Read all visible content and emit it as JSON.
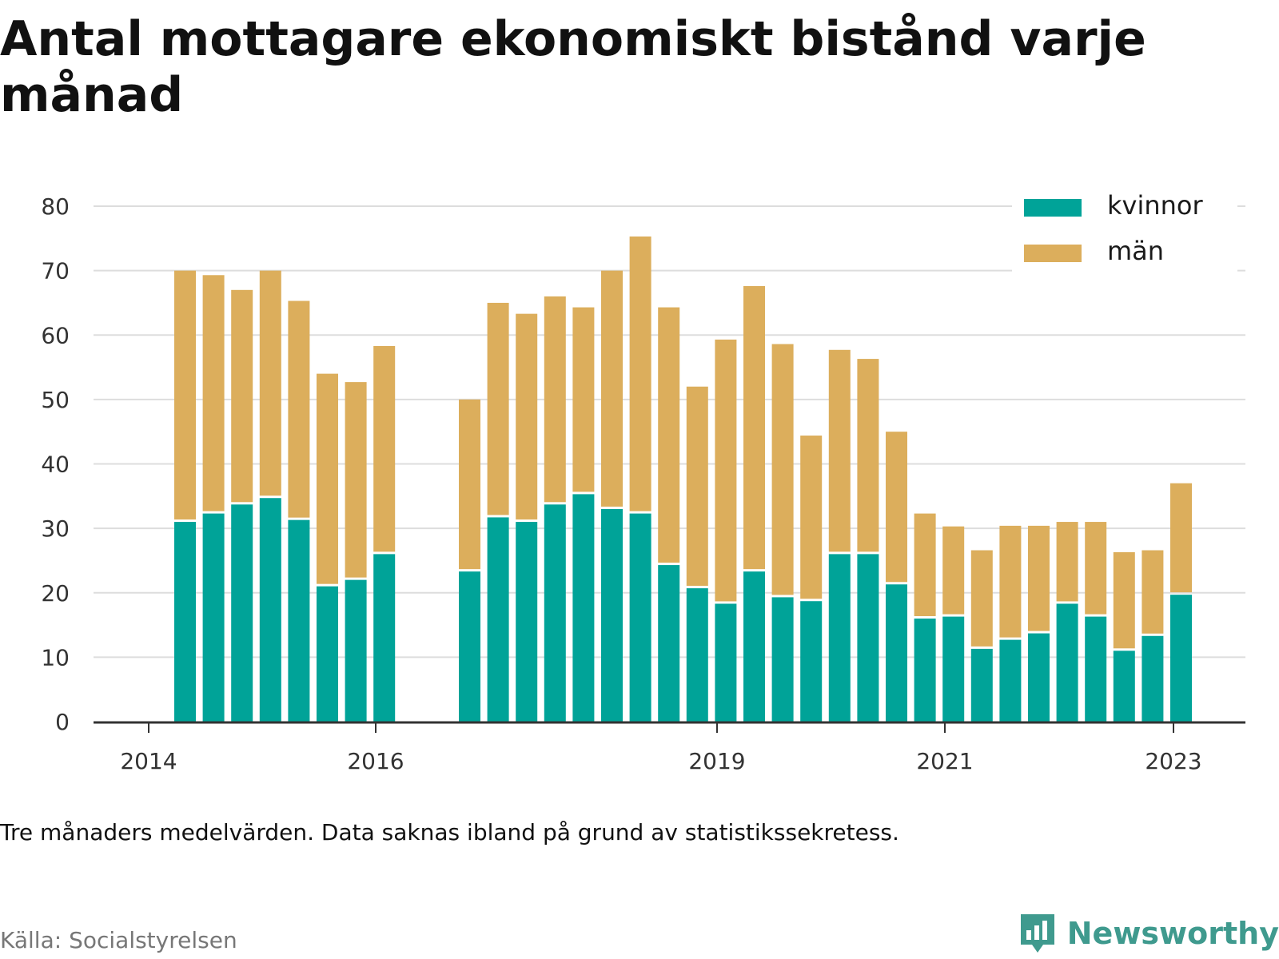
{
  "title": "Antal mottagare ekonomiskt bistånd varje månad",
  "note": "Tre månaders medelvärden. Data saknas ibland på grund av statistikssekretess.",
  "source": "Källa: Socialstyrelsen",
  "brand": {
    "name": "Newsworthy",
    "icon": "newsworthy-logo-icon",
    "color": "#3f9a8e"
  },
  "colors": {
    "kvinnor": "#00a398",
    "man": "#dcae5c",
    "grid": "#dddddd",
    "axis": "#333333"
  },
  "chart_data": {
    "type": "bar",
    "stacked": true,
    "x_ticks": [
      "2014",
      "2016",
      "2019",
      "2021",
      "2023"
    ],
    "ylim": [
      0,
      80
    ],
    "y_ticks": [
      0,
      10,
      20,
      30,
      40,
      50,
      60,
      70,
      80
    ],
    "grid": true,
    "legend_position": "top-right",
    "categories": [
      "2014-Q2",
      "2014-Q3",
      "2014-Q4",
      "2015-Q1",
      "2015-Q2",
      "2015-Q3",
      "2015-Q4",
      "2016-Q1",
      "2016-Q2",
      "2016-Q3",
      "2016-Q4",
      "2017-Q1",
      "2017-Q2",
      "2017-Q3",
      "2017-Q4",
      "2018-Q1",
      "2018-Q2",
      "2018-Q3",
      "2018-Q4",
      "2019-Q1",
      "2019-Q2",
      "2019-Q3",
      "2019-Q4",
      "2020-Q1",
      "2020-Q2",
      "2020-Q3",
      "2020-Q4",
      "2021-Q1",
      "2021-Q2",
      "2021-Q3",
      "2021-Q4",
      "2022-Q1",
      "2022-Q2",
      "2022-Q3",
      "2022-Q4",
      "2023-Q1"
    ],
    "series": [
      {
        "name": "kvinnor",
        "values": [
          31,
          32.3,
          33.7,
          34.7,
          31.3,
          21,
          22,
          26,
          null,
          null,
          23.3,
          31.7,
          31,
          33.7,
          35.3,
          33,
          32.3,
          24.3,
          20.7,
          18.3,
          23.3,
          19.3,
          18.7,
          26,
          26,
          21.3,
          16,
          16.3,
          11.3,
          12.7,
          13.7,
          18.3,
          16.3,
          11,
          13.3,
          19.7
        ]
      },
      {
        "name": "män",
        "values": [
          39,
          37,
          33.3,
          35.3,
          34,
          33,
          30.7,
          32.3,
          null,
          null,
          26.7,
          33.3,
          32.3,
          32.3,
          29,
          37,
          43,
          40,
          31.3,
          41,
          44.3,
          39.3,
          25.7,
          31.7,
          30.3,
          23.7,
          16.3,
          14,
          15.3,
          17.7,
          16.7,
          12.7,
          14.7,
          15.3,
          13.3,
          17.3
        ]
      }
    ]
  }
}
